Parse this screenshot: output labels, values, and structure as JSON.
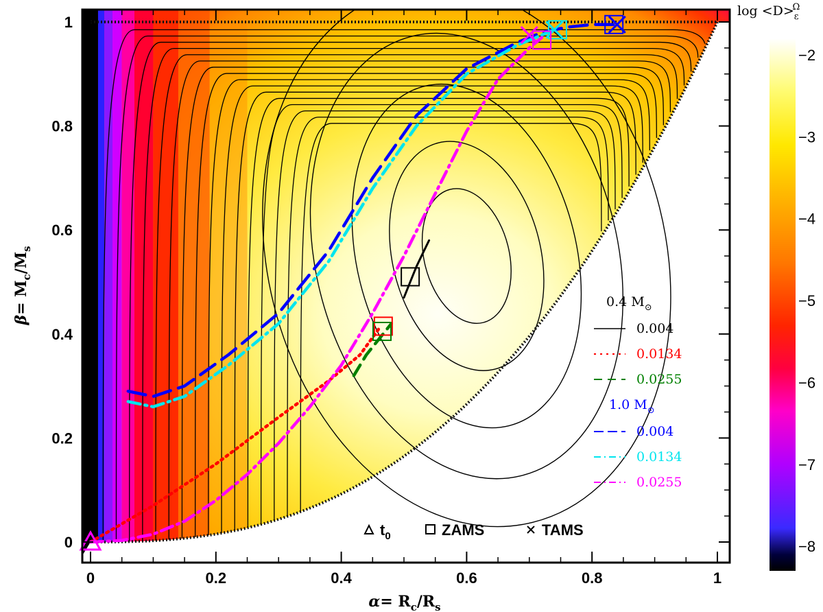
{
  "chart_data": {
    "type": "contour",
    "xlabel": "α= R_c/R_s",
    "xlabel_parts": {
      "greek": "α",
      "eq": "= R",
      "sub1": "c",
      "slash": "/R",
      "sub2": "s"
    },
    "ylabel": "β= M_c/M_s",
    "ylabel_parts": {
      "greek": "β",
      "eq": "= M",
      "sub1": "c",
      "slash": "/M",
      "sub2": "s"
    },
    "xlim": [
      -0.02,
      1.02
    ],
    "ylim": [
      -0.02,
      1.02
    ],
    "xticks": [
      0,
      0.2,
      0.4,
      0.6,
      0.8,
      1
    ],
    "xtick_labels": [
      "0",
      "0.2",
      "0.4",
      "0.6",
      "0.8",
      "1"
    ],
    "yticks": [
      0,
      0.2,
      0.4,
      0.6,
      0.8,
      1
    ],
    "ytick_labels": [
      "0",
      "0.2",
      "0.4",
      "0.6",
      "0.8",
      "1"
    ],
    "colorbar": {
      "title": "log <D>",
      "title_sub": "ε",
      "title_sup": "Ω",
      "range": [
        -8.3,
        -1.8
      ],
      "ticks": [
        -2,
        -3,
        -4,
        -5,
        -6,
        -7,
        -8
      ],
      "tick_labels": [
        "−2",
        "−3",
        "−4",
        "−5",
        "−6",
        "−7",
        "−8"
      ]
    },
    "contour_field": {
      "peak_alpha": 0.6,
      "peak_beta": 0.55,
      "peak_value": -1.95,
      "lower_bound": "β = α^2.6 (unphysical region below)"
    },
    "legend": {
      "groups": [
        {
          "title": "0.4 M",
          "title_sub": "⊙",
          "title_color": "#000000",
          "entries": [
            {
              "label": "0.004",
              "color": "#000000",
              "style": "solid"
            },
            {
              "label": "0.0134",
              "color": "#ff0000",
              "style": "dotted"
            },
            {
              "label": "0.0255",
              "color": "#008000",
              "style": "dashed"
            }
          ]
        },
        {
          "title": "1.0 M",
          "title_sub": "⊙",
          "title_color": "#0000ff",
          "entries": [
            {
              "label": "0.004",
              "color": "#0000ff",
              "style": "long-dash"
            },
            {
              "label": "0.0134",
              "color": "#00e5ee",
              "style": "dash-dot"
            },
            {
              "label": "0.0255",
              "color": "#ff00ff",
              "style": "dash-dot"
            }
          ]
        }
      ]
    },
    "marker_legend": [
      {
        "symbol": "triangle",
        "label": "t",
        "label_sub": "0"
      },
      {
        "symbol": "square",
        "label": "ZAMS"
      },
      {
        "symbol": "x",
        "label": "TAMS"
      }
    ],
    "series": [
      {
        "name": "0.4 Msun Z=0.004",
        "color": "#000000",
        "style": "solid",
        "x": [
          0.5,
          0.51,
          0.52,
          0.53,
          0.54
        ],
        "y": [
          0.47,
          0.5,
          0.53,
          0.555,
          0.58
        ],
        "zams": [
          0.51,
          0.51
        ]
      },
      {
        "name": "0.4 Msun Z=0.0134",
        "color": "#ff0000",
        "style": "dotted",
        "x": [
          0.0,
          0.1,
          0.2,
          0.3,
          0.38,
          0.43,
          0.46
        ],
        "y": [
          0.0,
          0.07,
          0.15,
          0.24,
          0.31,
          0.36,
          0.41
        ],
        "zams": [
          0.467,
          0.415
        ]
      },
      {
        "name": "0.4 Msun Z=0.0255",
        "color": "#008000",
        "style": "dashed",
        "x": [
          0.42,
          0.44,
          0.46,
          0.48
        ],
        "y": [
          0.32,
          0.36,
          0.39,
          0.42
        ],
        "zams": [
          0.465,
          0.405
        ]
      },
      {
        "name": "1.0 Msun Z=0.004",
        "color": "#0000ff",
        "style": "long-dash",
        "x": [
          0.06,
          0.1,
          0.15,
          0.22,
          0.3,
          0.38,
          0.45,
          0.52,
          0.6,
          0.68,
          0.72,
          0.76,
          0.8,
          0.84
        ],
        "y": [
          0.29,
          0.28,
          0.3,
          0.36,
          0.44,
          0.56,
          0.7,
          0.82,
          0.91,
          0.96,
          0.98,
          0.99,
          0.995,
          0.995
        ],
        "zams": [
          0.835,
          0.995
        ],
        "tams": [
          0.84,
          0.995
        ]
      },
      {
        "name": "1.0 Msun Z=0.0134",
        "color": "#00e5ee",
        "style": "dash-dot",
        "x": [
          0.06,
          0.1,
          0.15,
          0.22,
          0.3,
          0.38,
          0.45,
          0.52,
          0.6,
          0.68,
          0.72,
          0.74
        ],
        "y": [
          0.27,
          0.26,
          0.28,
          0.34,
          0.42,
          0.54,
          0.68,
          0.8,
          0.9,
          0.955,
          0.975,
          0.985
        ],
        "zams": [
          0.745,
          0.985
        ],
        "tams": [
          0.74,
          0.985
        ]
      },
      {
        "name": "1.0 Msun Z=0.0255",
        "color": "#ff00ff",
        "style": "dash-dot",
        "x": [
          0.0,
          0.05,
          0.1,
          0.15,
          0.2,
          0.25,
          0.3,
          0.35,
          0.4,
          0.45,
          0.5,
          0.55,
          0.6,
          0.65,
          0.7,
          0.72
        ],
        "y": [
          0.0,
          0.003,
          0.015,
          0.04,
          0.08,
          0.13,
          0.19,
          0.26,
          0.34,
          0.44,
          0.55,
          0.67,
          0.79,
          0.89,
          0.95,
          0.97
        ],
        "zams": [
          0.72,
          0.965
        ],
        "tams": [
          0.7,
          0.975
        ]
      }
    ],
    "t0_point": [
      0.0,
      0.0
    ]
  }
}
